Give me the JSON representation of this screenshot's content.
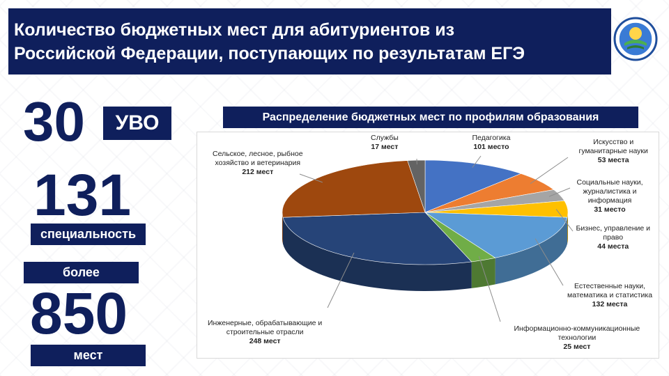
{
  "header": {
    "title_line1": "Количество бюджетных мест для абитуриентов из",
    "title_line2": "Российской Федерации, поступающих по результатам  ЕГЭ"
  },
  "stats": {
    "universities": {
      "value": "30",
      "label": "УВО"
    },
    "specialties": {
      "value": "131",
      "label": "специальность"
    },
    "places": {
      "prefix": "более",
      "value": "850",
      "label": "мест"
    }
  },
  "chart_data": {
    "type": "pie",
    "title": "Распределение бюджетных мест по профилям образования",
    "slices": [
      {
        "name": "Педагогика",
        "value": 101,
        "value_label": "101 место",
        "color": "#4472c4"
      },
      {
        "name": "Искусство и гуманитарные науки",
        "value": 53,
        "value_label": "53 места",
        "color": "#ed7d31"
      },
      {
        "name": "Социальные науки, журналистика и информация",
        "value": 31,
        "value_label": "31 место",
        "color": "#a5a5a5"
      },
      {
        "name": "Бизнес, управление и право",
        "value": 44,
        "value_label": "44 места",
        "color": "#ffc000"
      },
      {
        "name": "Естественные науки, математика и статистика",
        "value": 132,
        "value_label": "132 места",
        "color": "#5b9bd5"
      },
      {
        "name": "Информационно-коммуникационные технологии",
        "value": 25,
        "value_label": "25 мест",
        "color": "#70ad47"
      },
      {
        "name": "Инженерные, обрабатывающие и строительные отрасли",
        "value": 248,
        "value_label": "248 мест",
        "color": "#264478"
      },
      {
        "name": "Сельское, лесное, рыбное хозяйство и ветеринария",
        "value": 212,
        "value_label": "212 мест",
        "color": "#9e480e"
      },
      {
        "name": "Службы",
        "value": 17,
        "value_label": "17 мест",
        "color": "#636363"
      }
    ]
  },
  "labels": [
    {
      "name_lines": [
        "Педагогика"
      ]
    },
    {
      "name_lines": [
        "Искусство и",
        "гуманитарные науки"
      ]
    },
    {
      "name_lines": [
        "Социальные науки,",
        "журналистика и",
        "информация"
      ]
    },
    {
      "name_lines": [
        "Бизнес, управление и",
        "право"
      ]
    },
    {
      "name_lines": [
        "Естественные науки,",
        "математика и статистика"
      ]
    },
    {
      "name_lines": [
        "Информационно-коммуникационные",
        "технологии"
      ]
    },
    {
      "name_lines": [
        "Инженерные, обрабатывающие и",
        "строительные отрасли"
      ]
    },
    {
      "name_lines": [
        "Сельское, лесное, рыбное",
        "хозяйство и ветеринария"
      ]
    },
    {
      "name_lines": [
        "Службы"
      ]
    }
  ]
}
